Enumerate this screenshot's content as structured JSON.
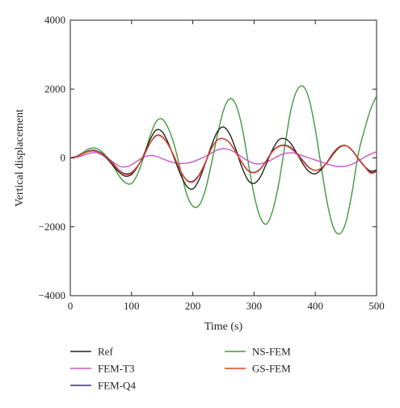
{
  "chart_data": {
    "type": "line",
    "title": "",
    "xlabel": "Time (s)",
    "ylabel": "Vertical displacement",
    "xlim": [
      0,
      500
    ],
    "ylim": [
      -4000,
      4000
    ],
    "xticks": [
      0,
      100,
      200,
      300,
      400,
      500
    ],
    "xtick_labels": [
      "0",
      "100",
      "200",
      "300",
      "400",
      "500"
    ],
    "yticks": [
      -4000,
      -2000,
      0,
      2000,
      4000
    ],
    "ytick_labels": [
      "−4000",
      "−2000",
      "0",
      "2000",
      "4000"
    ],
    "grid": false,
    "legend_position": "bottom, two columns",
    "series": [
      {
        "name": "Ref",
        "color": "#222222",
        "x": [
          0,
          10,
          20,
          30,
          40,
          50,
          60,
          70,
          80,
          90,
          100,
          110,
          120,
          130,
          140,
          150,
          160,
          170,
          180,
          190,
          200,
          210,
          220,
          230,
          240,
          250,
          260,
          270,
          280,
          290,
          300,
          310,
          320,
          330,
          340,
          350,
          360,
          370,
          380,
          390,
          400,
          410,
          420,
          430,
          440,
          450,
          460,
          470,
          480,
          490,
          500
        ],
        "y": [
          0,
          40,
          120,
          200,
          220,
          130,
          -20,
          -220,
          -420,
          -530,
          -480,
          -250,
          100,
          520,
          810,
          760,
          430,
          -20,
          -480,
          -820,
          -900,
          -640,
          -180,
          330,
          760,
          900,
          700,
          260,
          -260,
          -640,
          -740,
          -560,
          -170,
          240,
          520,
          560,
          420,
          130,
          -180,
          -400,
          -460,
          -330,
          -100,
          160,
          330,
          360,
          220,
          -20,
          -240,
          -380,
          -350
        ]
      },
      {
        "name": "FEM-T3",
        "color": "#cc55cc",
        "x": [
          0,
          10,
          20,
          30,
          40,
          50,
          60,
          70,
          80,
          90,
          100,
          110,
          120,
          130,
          140,
          150,
          160,
          170,
          180,
          190,
          200,
          210,
          220,
          230,
          240,
          250,
          260,
          270,
          280,
          290,
          300,
          310,
          320,
          330,
          340,
          350,
          360,
          370,
          380,
          390,
          400,
          410,
          420,
          430,
          440,
          450,
          460,
          470,
          480,
          490,
          500
        ],
        "y": [
          0,
          20,
          70,
          130,
          160,
          110,
          0,
          -120,
          -240,
          -260,
          -200,
          -80,
          30,
          70,
          50,
          -20,
          -90,
          -140,
          -160,
          -150,
          -110,
          -40,
          40,
          140,
          230,
          270,
          240,
          150,
          30,
          -80,
          -160,
          -170,
          -120,
          -40,
          60,
          130,
          150,
          120,
          60,
          0,
          -60,
          -120,
          -180,
          -230,
          -250,
          -240,
          -180,
          -90,
          20,
          110,
          180
        ]
      },
      {
        "name": "FEM-Q4",
        "color": "#3a2f70",
        "x": [
          0,
          10,
          20,
          30,
          40,
          50,
          60,
          70,
          80,
          90,
          100,
          110,
          120,
          130,
          140,
          150,
          160,
          170,
          180,
          190,
          200,
          210,
          220,
          230,
          240,
          250,
          260,
          270,
          280,
          290,
          300,
          310,
          320,
          330,
          340,
          350,
          360,
          370,
          380,
          390,
          400,
          410,
          420,
          430,
          440,
          450,
          460,
          470,
          480,
          490,
          500
        ],
        "y": [
          0,
          40,
          120,
          190,
          210,
          150,
          20,
          -160,
          -360,
          -460,
          -420,
          -230,
          60,
          420,
          650,
          620,
          380,
          20,
          -380,
          -640,
          -680,
          -500,
          -150,
          260,
          520,
          560,
          440,
          180,
          -120,
          -360,
          -420,
          -320,
          -80,
          200,
          340,
          370,
          300,
          130,
          -80,
          -280,
          -360,
          -300,
          -120,
          120,
          310,
          360,
          220,
          -10,
          -230,
          -420,
          -380
        ]
      },
      {
        "name": "NS-FEM",
        "color": "#3f9a3f",
        "x": [
          0,
          10,
          20,
          30,
          40,
          50,
          60,
          70,
          80,
          90,
          100,
          110,
          120,
          130,
          140,
          150,
          160,
          170,
          180,
          190,
          200,
          210,
          220,
          230,
          240,
          250,
          260,
          270,
          280,
          290,
          300,
          310,
          320,
          330,
          340,
          350,
          360,
          370,
          380,
          390,
          400,
          410,
          420,
          430,
          440,
          450,
          460,
          470,
          480,
          490,
          500
        ],
        "y": [
          0,
          50,
          150,
          260,
          290,
          200,
          20,
          -240,
          -530,
          -720,
          -740,
          -460,
          30,
          620,
          1050,
          1130,
          860,
          360,
          -350,
          -1050,
          -1400,
          -1380,
          -960,
          -200,
          650,
          1380,
          1720,
          1560,
          930,
          -80,
          -1070,
          -1720,
          -1920,
          -1550,
          -780,
          320,
          1380,
          1960,
          2080,
          1700,
          830,
          -290,
          -1350,
          -2040,
          -2200,
          -1860,
          -1000,
          100,
          800,
          1400,
          1800
        ]
      },
      {
        "name": "GS-FEM",
        "color": "#dd4422",
        "x": [
          0,
          10,
          20,
          30,
          40,
          50,
          60,
          70,
          80,
          90,
          100,
          110,
          120,
          130,
          140,
          150,
          160,
          170,
          180,
          190,
          200,
          210,
          220,
          230,
          240,
          250,
          260,
          270,
          280,
          290,
          300,
          310,
          320,
          330,
          340,
          350,
          360,
          370,
          380,
          390,
          400,
          410,
          420,
          430,
          440,
          450,
          460,
          470,
          480,
          490,
          500
        ],
        "y": [
          0,
          40,
          120,
          190,
          200,
          140,
          10,
          -170,
          -370,
          -480,
          -440,
          -240,
          80,
          420,
          640,
          610,
          380,
          30,
          -380,
          -650,
          -700,
          -520,
          -160,
          260,
          520,
          560,
          440,
          170,
          -130,
          -370,
          -430,
          -330,
          -90,
          180,
          330,
          360,
          280,
          110,
          -100,
          -290,
          -360,
          -290,
          -110,
          130,
          310,
          360,
          230,
          -10,
          -240,
          -440,
          -400
        ]
      }
    ]
  }
}
